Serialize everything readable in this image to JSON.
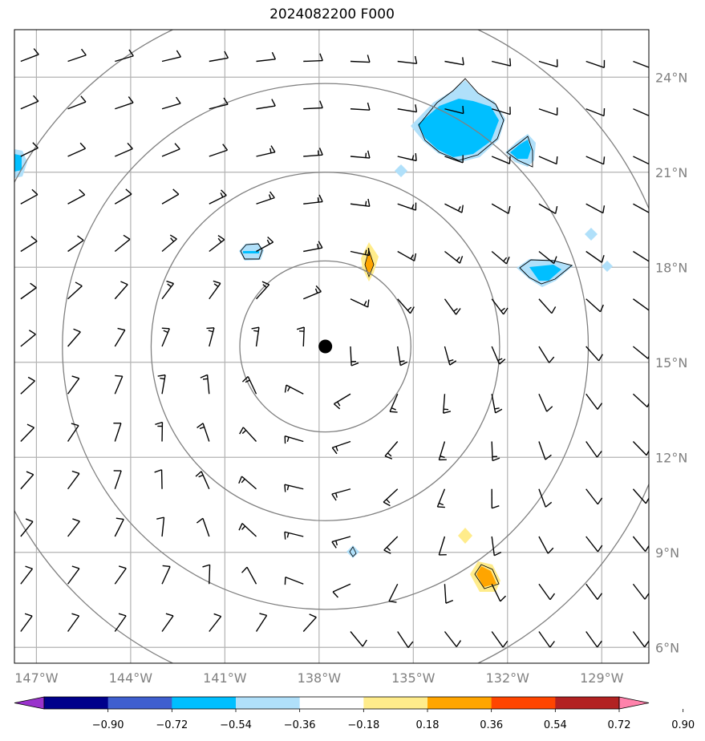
{
  "title": "2024082200 F000",
  "map": {
    "lon_labels": [
      "147°W",
      "144°W",
      "141°W",
      "138°W",
      "135°W",
      "132°W",
      "129°W"
    ],
    "lat_labels": [
      "24°N",
      "21°N",
      "18°N",
      "15°N",
      "12°N",
      "9°N",
      "6°N"
    ],
    "lon_values": [
      -147,
      -144,
      -141,
      -138,
      -135,
      -132,
      -129
    ],
    "lat_values": [
      24,
      21,
      18,
      15,
      12,
      9,
      6
    ],
    "extent": {
      "lon_min": -147.7,
      "lon_max": -127.5,
      "lat_min": 5.5,
      "lat_max": 25.5
    },
    "center": {
      "lon": -137.8,
      "lat": 15.5
    },
    "range_rings_deg": [
      2.7,
      5.5,
      8.3,
      11.1
    ],
    "colors": {
      "grid": "#b3b3b3",
      "ring": "#808080",
      "barb": "#000000",
      "center": "#000000"
    }
  },
  "colorbar": {
    "labels": [
      "−0.90",
      "−0.72",
      "−0.54",
      "−0.36",
      "−0.18",
      "0.18",
      "0.36",
      "0.54",
      "0.72",
      "0.90"
    ],
    "colors": [
      "#9932cc",
      "#00008b",
      "#3f5fcf",
      "#00bfff",
      "#b0e0fa",
      "#ffffff",
      "#ffec8b",
      "#ffa500",
      "#ff4500",
      "#b22222",
      "#ff82ab"
    ]
  }
}
